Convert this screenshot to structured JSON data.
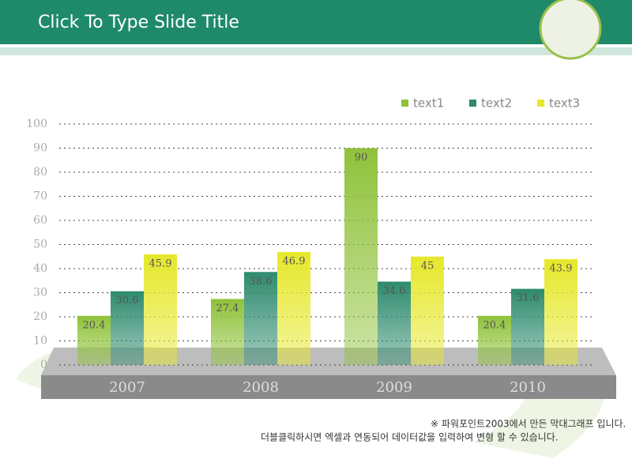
{
  "header": {
    "title": "Click To Type Slide Title"
  },
  "chart_data": {
    "type": "bar",
    "categories": [
      "2007",
      "2008",
      "2009",
      "2010"
    ],
    "series": [
      {
        "name": "text1",
        "color": "#8fc23a",
        "values": [
          20.4,
          27.4,
          90,
          20.4
        ]
      },
      {
        "name": "text2",
        "color": "#2e8b6e",
        "values": [
          30.6,
          38.6,
          34.6,
          31.6
        ]
      },
      {
        "name": "text3",
        "color": "#e6e82a",
        "values": [
          45.9,
          46.9,
          45,
          43.9
        ]
      }
    ],
    "ylim": [
      0,
      100
    ],
    "yticks": [
      0,
      10,
      20,
      30,
      40,
      50,
      60,
      70,
      80,
      90,
      100
    ],
    "grid": true,
    "legend": "top-right"
  },
  "footnote": [
    "※ 파워포인트2003에서 만든 막대그래프 입니다.",
    "더블클릭하시면 엑셀과 연동되어 데이터값을 입력하여 변형 할 수 있습니다."
  ]
}
